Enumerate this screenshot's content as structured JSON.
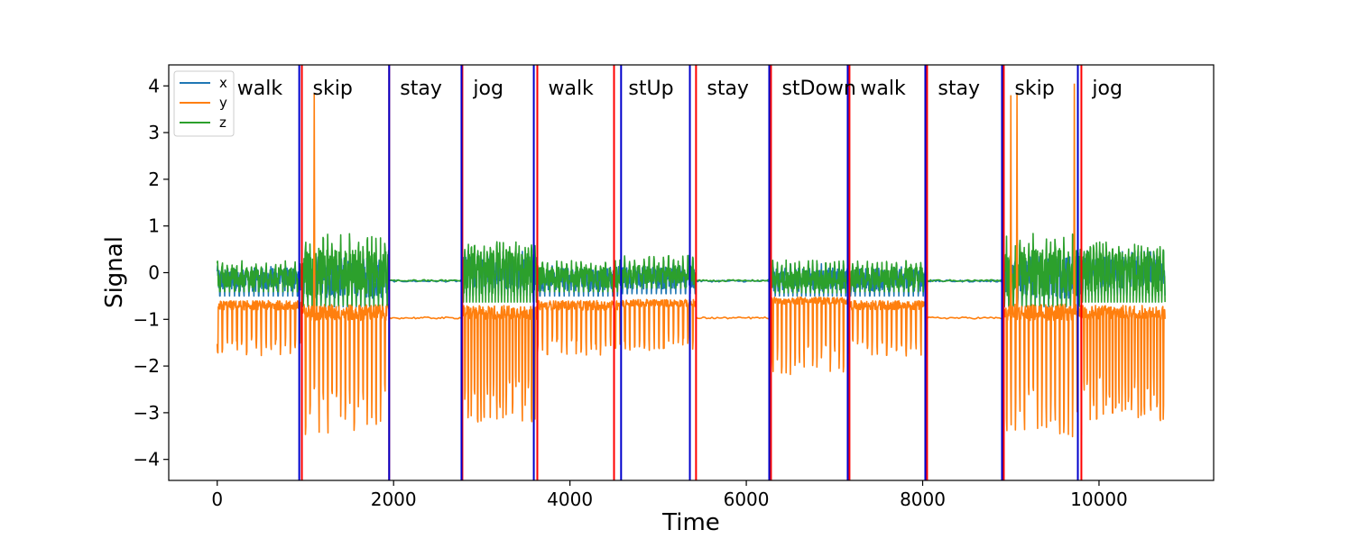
{
  "chart_data": {
    "type": "line",
    "xlabel": "Time",
    "ylabel": "Signal",
    "xlim": [
      -550,
      11300
    ],
    "ylim": [
      -4.45,
      4.45
    ],
    "x_ticks": [
      0,
      2000,
      4000,
      6000,
      8000,
      10000
    ],
    "x_tick_labels": [
      "0",
      "2000",
      "4000",
      "6000",
      "8000",
      "10000"
    ],
    "y_ticks": [
      4,
      3,
      2,
      1,
      0,
      -1,
      -2,
      -3,
      -4
    ],
    "y_tick_labels": [
      "4",
      "3",
      "2",
      "1",
      "0",
      "−1",
      "−2",
      "−3",
      "−4"
    ],
    "legend": {
      "placement": "top-left",
      "entries": [
        "x",
        "y",
        "z"
      ]
    },
    "series": [
      {
        "name": "x",
        "color": "#1f77b4"
      },
      {
        "name": "y",
        "color": "#ff7f0e"
      },
      {
        "name": "z",
        "color": "#2ca02c"
      }
    ],
    "segments": [
      {
        "label": "walk",
        "start": 0,
        "end": 960
      },
      {
        "label": "skip",
        "start": 960,
        "end": 1950
      },
      {
        "label": "stay",
        "start": 1950,
        "end": 2780
      },
      {
        "label": "jog",
        "start": 2780,
        "end": 3630
      },
      {
        "label": "walk",
        "start": 3630,
        "end": 4540
      },
      {
        "label": "stUp",
        "start": 4540,
        "end": 5430
      },
      {
        "label": "stay",
        "start": 5430,
        "end": 6280
      },
      {
        "label": "stDown",
        "start": 6280,
        "end": 7170
      },
      {
        "label": "walk",
        "start": 7170,
        "end": 8050
      },
      {
        "label": "stay",
        "start": 8050,
        "end": 8920
      },
      {
        "label": "skip",
        "start": 8920,
        "end": 9800
      },
      {
        "label": "jog",
        "start": 9800,
        "end": 10750
      }
    ],
    "red_boundaries": [
      960,
      1950,
      2780,
      3630,
      4500,
      5430,
      6280,
      7170,
      8050,
      8920,
      9800
    ],
    "blue_boundaries": [
      930,
      1950,
      2770,
      3590,
      4580,
      5360,
      6260,
      7150,
      8030,
      8900,
      9760
    ]
  }
}
